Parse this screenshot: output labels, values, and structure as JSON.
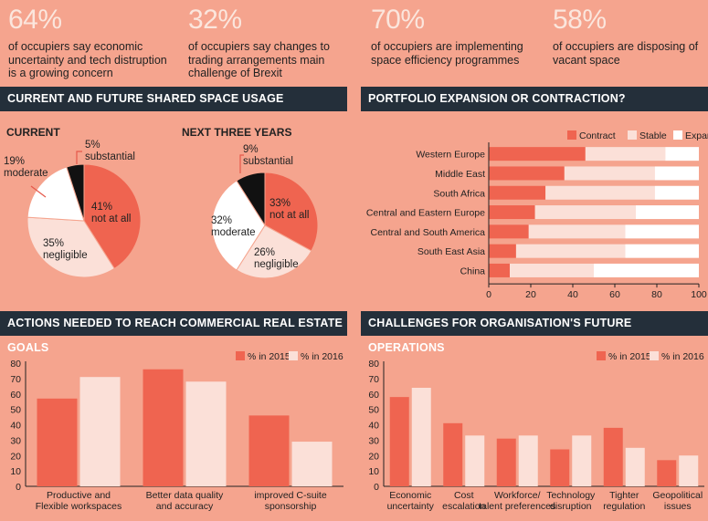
{
  "stats": [
    {
      "value": "64%",
      "text": "of occupiers say economic uncertainty and tech distruption is a growing concern"
    },
    {
      "value": "32%",
      "text": "of occupiers say changes to trading arrangements main challenge of Brexit"
    },
    {
      "value": "70%",
      "text": "of occupiers are implementing space efficiency programmes"
    },
    {
      "value": "58%",
      "text": "of occupiers are disposing of vacant space"
    }
  ],
  "colors": {
    "dark": "#242f3a",
    "c2015": "#ef6450",
    "c2016": "#fbe0d8",
    "contract": "#ef6450",
    "stable": "#fbe0d8",
    "expand": "#ffffff",
    "black": "#111111",
    "bg": "#f5a48e"
  },
  "chart_data": [
    {
      "type": "pie",
      "title": "CURRENT AND FUTURE SHARED SPACE USAGE",
      "subtitle": "CURRENT",
      "slices": [
        {
          "value": 41,
          "label": "41%",
          "name": "not at all",
          "color": "#ef6450"
        },
        {
          "value": 35,
          "label": "35%",
          "name": "negligible",
          "color": "#fbe0d8"
        },
        {
          "value": 19,
          "label": "19%",
          "name": "moderate",
          "color": "#ffffff"
        },
        {
          "value": 5,
          "label": "5%",
          "name": "substantial",
          "color": "#111111"
        }
      ]
    },
    {
      "type": "pie",
      "subtitle": "NEXT THREE YEARS",
      "slices": [
        {
          "value": 33,
          "label": "33%",
          "name": "not at all",
          "color": "#ef6450"
        },
        {
          "value": 26,
          "label": "26%",
          "name": "negligible",
          "color": "#fbe0d8"
        },
        {
          "value": 32,
          "label": "32%",
          "name": "moderate",
          "color": "#ffffff"
        },
        {
          "value": 9,
          "label": "9%",
          "name": "substantial",
          "color": "#111111"
        }
      ]
    },
    {
      "type": "bar",
      "orientation": "horizontal",
      "stacked": true,
      "title": "PORTFOLIO EXPANSION OR CONTRACTION?",
      "categories": [
        "Western Europe",
        "Middle East",
        "South Africa",
        "Central and Eastern Europe",
        "Central and South America",
        "South East Asia",
        "China"
      ],
      "series": [
        {
          "name": "Contract",
          "values": [
            46,
            36,
            27,
            22,
            19,
            13,
            10
          ]
        },
        {
          "name": "Stable",
          "values": [
            38,
            43,
            52,
            48,
            46,
            52,
            40
          ]
        },
        {
          "name": "Expand",
          "values": [
            16,
            21,
            21,
            30,
            35,
            35,
            50
          ]
        }
      ],
      "xlim": [
        0,
        100
      ],
      "xticks": [
        0,
        20,
        40,
        60,
        80,
        100
      ],
      "legend": "top-right"
    },
    {
      "type": "bar",
      "title": "ACTIONS NEEDED TO REACH COMMERCIAL REAL ESTATE GOALS",
      "categories": [
        "Productive and Flexible workspaces",
        "Better data quality and accuracy",
        "improved C-suite sponsorship"
      ],
      "category_lines": [
        [
          "Productive and",
          "Flexible workspaces"
        ],
        [
          "Better data quality",
          "and accuracy"
        ],
        [
          "improved C-suite",
          "sponsorship"
        ]
      ],
      "series": [
        {
          "name": "% in 2015",
          "values": [
            57,
            76,
            46
          ]
        },
        {
          "name": "% in 2016",
          "values": [
            71,
            68,
            29
          ]
        }
      ],
      "ylim": [
        0,
        80
      ],
      "yticks": [
        0,
        10,
        20,
        30,
        40,
        50,
        60,
        70,
        80
      ],
      "legend": "top-right"
    },
    {
      "type": "bar",
      "title": "CHALLENGES FOR ORGANISATION'S FUTURE OPERATIONS",
      "categories": [
        "Economic uncertainty",
        "Cost escalation",
        "Workforce/ talent preferences",
        "Technology disruption",
        "Tighter regulation",
        "Geopolitical issues"
      ],
      "category_lines": [
        [
          "Economic",
          "uncertainty"
        ],
        [
          "Cost",
          "escalation"
        ],
        [
          "Workforce/",
          "talent preferences"
        ],
        [
          "Technology",
          "disruption"
        ],
        [
          "Tighter",
          "regulation"
        ],
        [
          "Geopolitical",
          "issues"
        ]
      ],
      "series": [
        {
          "name": "% in 2015",
          "values": [
            58,
            41,
            31,
            24,
            38,
            17
          ]
        },
        {
          "name": "% in 2016",
          "values": [
            64,
            33,
            33,
            33,
            25,
            20
          ]
        }
      ],
      "ylim": [
        0,
        80
      ],
      "yticks": [
        0,
        10,
        20,
        30,
        40,
        50,
        60,
        70,
        80
      ],
      "legend": "top-right"
    }
  ]
}
